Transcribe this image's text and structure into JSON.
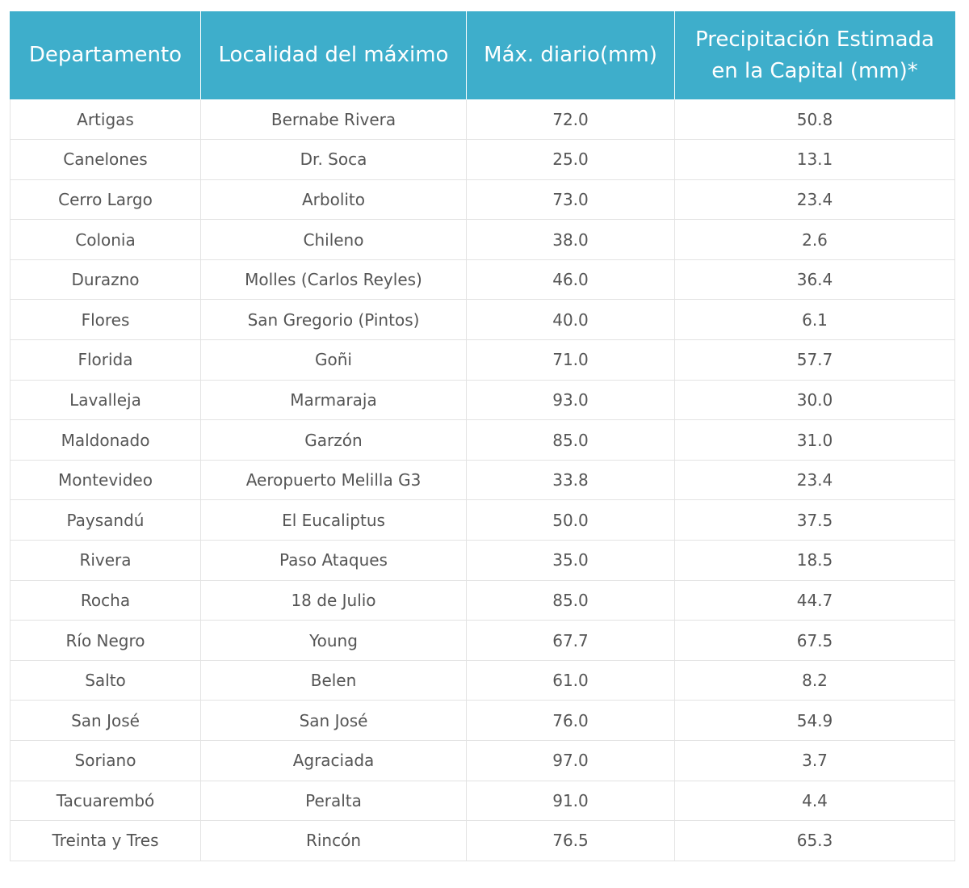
{
  "table": {
    "columns": [
      "Departamento",
      "Localidad del máximo",
      "Máx. diario(mm)",
      "Precipitación Estimada en la Capital (mm)*"
    ],
    "rows": [
      [
        "Artigas",
        "Bernabe Rivera",
        "72.0",
        "50.8"
      ],
      [
        "Canelones",
        "Dr. Soca",
        "25.0",
        "13.1"
      ],
      [
        "Cerro Largo",
        "Arbolito",
        "73.0",
        "23.4"
      ],
      [
        "Colonia",
        "Chileno",
        "38.0",
        "2.6"
      ],
      [
        "Durazno",
        "Molles (Carlos Reyles)",
        "46.0",
        "36.4"
      ],
      [
        "Flores",
        "San Gregorio (Pintos)",
        "40.0",
        "6.1"
      ],
      [
        "Florida",
        "Goñi",
        "71.0",
        "57.7"
      ],
      [
        "Lavalleja",
        "Marmaraja",
        "93.0",
        "30.0"
      ],
      [
        "Maldonado",
        "Garzón",
        "85.0",
        "31.0"
      ],
      [
        "Montevideo",
        "Aeropuerto Melilla G3",
        "33.8",
        "23.4"
      ],
      [
        "Paysandú",
        "El Eucaliptus",
        "50.0",
        "37.5"
      ],
      [
        "Rivera",
        "Paso Ataques",
        "35.0",
        "18.5"
      ],
      [
        "Rocha",
        "18 de Julio",
        "85.0",
        "44.7"
      ],
      [
        "Río Negro",
        "Young",
        "67.7",
        "67.5"
      ],
      [
        "Salto",
        "Belen",
        "61.0",
        "8.2"
      ],
      [
        "San José",
        "San José",
        "76.0",
        "54.9"
      ],
      [
        "Soriano",
        "Agraciada",
        "97.0",
        "3.7"
      ],
      [
        "Tacuarembó",
        "Peralta",
        "91.0",
        "4.4"
      ],
      [
        "Treinta y Tres",
        "Rincón",
        "76.5",
        "65.3"
      ]
    ]
  },
  "colors": {
    "header_background": "#3eaecb",
    "header_text": "#ffffff",
    "cell_text": "#555555",
    "grid_lines": "#e3e3e3"
  }
}
